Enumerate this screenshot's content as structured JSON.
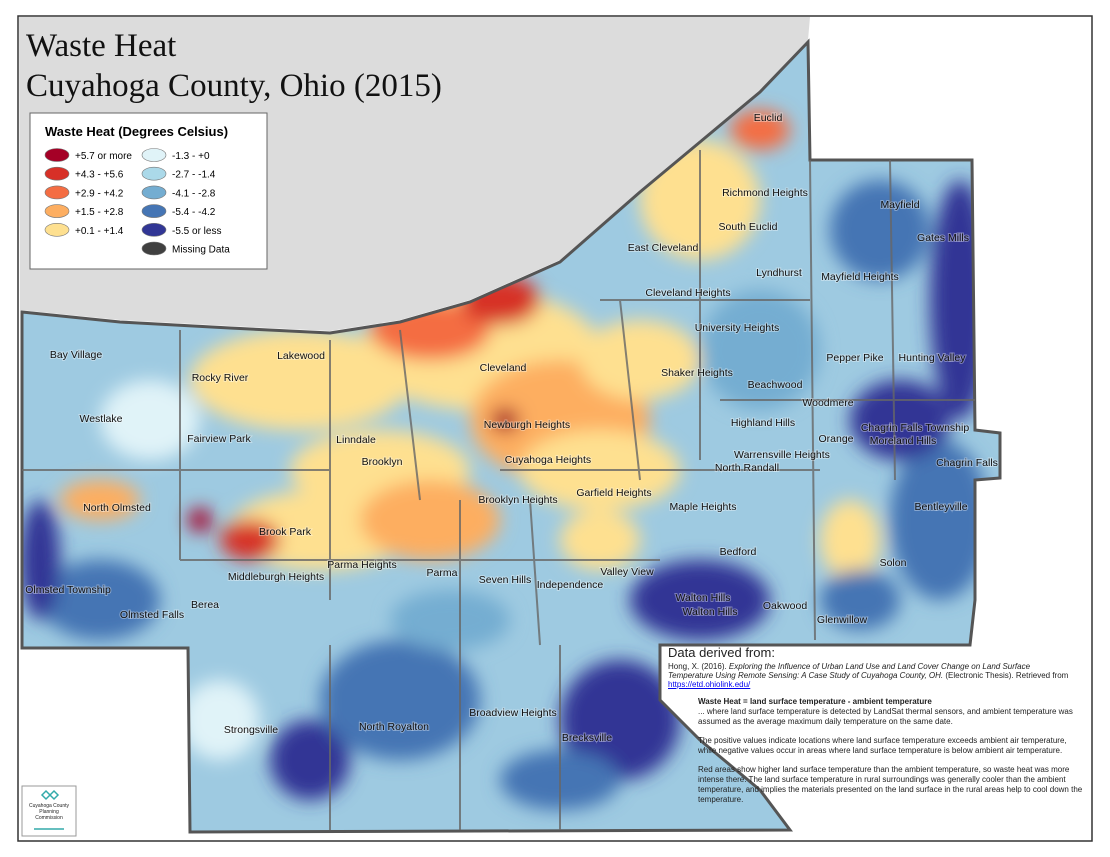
{
  "title": [
    "Waste Heat",
    "Cuyahoga County, Ohio (2015)"
  ],
  "legend": {
    "title": "Waste Heat (Degrees Celsius)",
    "items": [
      {
        "label": "+5.7 or more",
        "color": "#a50026"
      },
      {
        "label": "+4.3 - +5.6",
        "color": "#d73027"
      },
      {
        "label": "+2.9 - +4.2",
        "color": "#f46d43"
      },
      {
        "label": "+1.5 - +2.8",
        "color": "#fdae61"
      },
      {
        "label": "+0.1 - +1.4",
        "color": "#fee090"
      },
      {
        "label": "-1.3 - +0",
        "color": "#e0f3f8"
      },
      {
        "label": "-2.7 - -1.4",
        "color": "#abd9e9"
      },
      {
        "label": "-4.1 - -2.8",
        "color": "#74add1"
      },
      {
        "label": "-5.4 - -4.2",
        "color": "#4575b4"
      },
      {
        "label": "-5.5 or less",
        "color": "#313695"
      },
      {
        "label": "Missing Data",
        "color": "#404040"
      }
    ]
  },
  "places": [
    "Euclid",
    "Richmond Heights",
    "South Euclid",
    "Mayfield",
    "Gates Mills",
    "East Cleveland",
    "Lyndhurst",
    "Mayfield Heights",
    "Cleveland Heights",
    "University Heights",
    "Bay Village",
    "Lakewood",
    "Pepper Pike",
    "Hunting Valley",
    "Rocky River",
    "Cleveland",
    "Shaker Heights",
    "Beachwood",
    "Westlake",
    "Woodmere",
    "Newburgh Heights",
    "Highland Hills",
    "Chagrin Falls Township",
    "Fairview Park",
    "Linndale",
    "Orange",
    "Moreland Hills",
    "Warrensville Heights",
    "Brooklyn",
    "Cuyahoga Heights",
    "North Randall",
    "Chagrin Falls",
    "Garfield Heights",
    "Brooklyn Heights",
    "North Olmsted",
    "Maple Heights",
    "Bentleyville",
    "Brook Park",
    "Bedford",
    "Parma Heights",
    "Solon",
    "Parma",
    "Middleburgh Heights",
    "Seven Hills",
    "Valley View",
    "Independence",
    "Olmsted Township",
    "Walton Hills",
    "Walton Hills",
    "Oakwood",
    "Olmsted Falls",
    "Berea",
    "Glenwillow",
    "Broadview Heights",
    "North Royalton",
    "Brecksville",
    "Strongsville"
  ],
  "source": {
    "heading": "Data derived from:",
    "citation": [
      "Hong, X. (2016). ",
      "Exploring the Influence of Urban Land Use and Land Cover Change on Land Surface Temperature Using Remote Sensing: A Case Study of Cuyahoga County, OH.",
      " (Electronic Thesis). Retrieved from "
    ],
    "link": "https://etd.ohiolink.edu/"
  },
  "notes": {
    "definition": "Waste Heat = land surface temperature - ambient temperature",
    "paragraphs": [
      "... where land surface temperature is detected by LandSat thermal sensors, and ambient temperature was assumed as the average maximum daily temperature on the same date.",
      "The positive values indicate locations where land surface temperature exceeds ambient air temperature, while negative values occur in areas where land surface temperature is below ambient air temperature.",
      "Red areas show higher land surface temperature than the ambient temperature, so waste heat was more intense there. The land surface temperature in rural surroundings was generally cooler than the ambient temperature, and implies the materials presented on the land surface in the rural areas help to cool down the temperature."
    ]
  },
  "logo": "Cuyahoga County Planning Commission"
}
